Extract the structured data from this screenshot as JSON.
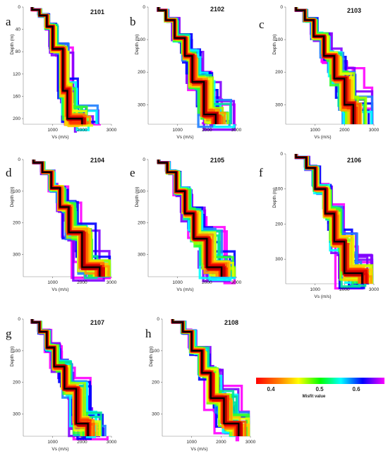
{
  "colorbar": {
    "title": "Misfit value",
    "ticks": [
      "0.4",
      "0.5",
      "0.6"
    ],
    "stops": [
      "#ff0000",
      "#ff7f00",
      "#ffff00",
      "#00ff00",
      "#00ffff",
      "#0000ff",
      "#ff00ff"
    ]
  },
  "chart_data": [
    {
      "type": "line",
      "panel": "a",
      "title": "2101",
      "xlabel": "Vs (m/s)",
      "ylabel": "Depth (m)",
      "xlim": [
        0,
        3000
      ],
      "ylim": [
        0,
        210
      ],
      "y_inverted": true,
      "xticks": [
        "1000",
        "2000",
        "3000"
      ],
      "yticks": [
        {
          "v": 0,
          "label": "0"
        },
        {
          "v": 40,
          "label": "40"
        },
        {
          "v": 80,
          "label": "80"
        },
        {
          "v": 120,
          "label": "120"
        },
        {
          "v": 160,
          "label": "160"
        },
        {
          "v": 200,
          "label": "200"
        }
      ],
      "best_model": {
        "vs": [
          300,
          550,
          800,
          1000,
          1350,
          1500,
          2000
        ],
        "depth_bottom": [
          5,
          15,
          35,
          75,
          150,
          200,
          210
        ]
      }
    },
    {
      "type": "line",
      "panel": "b",
      "title": "2102",
      "xlabel": "Vs (m/s)",
      "ylabel": "Depth (m)",
      "xlim": [
        0,
        3000
      ],
      "ylim": [
        0,
        360
      ],
      "y_inverted": true,
      "xticks": [
        "1000",
        "2000",
        "3000"
      ],
      "yticks": [
        {
          "v": 0,
          "label": "0"
        },
        {
          "v": 100,
          "label": "100"
        },
        {
          "v": 200,
          "label": "200"
        },
        {
          "v": 300,
          "label": "300"
        }
      ],
      "best_model": {
        "vs": [
          350,
          600,
          900,
          1250,
          1500,
          1900,
          2300
        ],
        "depth_bottom": [
          10,
          40,
          95,
          150,
          230,
          330,
          360
        ]
      }
    },
    {
      "type": "line",
      "panel": "c",
      "title": "2103",
      "xlabel": "Vs (m/s)",
      "ylabel": "Depth (m)",
      "xlim": [
        0,
        3000
      ],
      "ylim": [
        0,
        360
      ],
      "y_inverted": true,
      "xticks": [
        "1000",
        "2000",
        "3000"
      ],
      "yticks": [
        {
          "v": 0,
          "label": "0"
        },
        {
          "v": 100,
          "label": "100"
        },
        {
          "v": 200,
          "label": "200"
        },
        {
          "v": 300,
          "label": "300"
        }
      ],
      "best_model": {
        "vs": [
          350,
          650,
          950,
          1300,
          1650,
          2000,
          2300
        ],
        "depth_bottom": [
          10,
          40,
          90,
          150,
          220,
          300,
          360
        ]
      }
    },
    {
      "type": "line",
      "panel": "d",
      "title": "2104",
      "xlabel": "Vs (m/s)",
      "ylabel": "Depth (m)",
      "xlim": [
        0,
        3000
      ],
      "ylim": [
        0,
        370
      ],
      "y_inverted": true,
      "xticks": [
        "1000",
        "2000",
        "3000"
      ],
      "yticks": [
        {
          "v": 0,
          "label": "0"
        },
        {
          "v": 100,
          "label": "100"
        },
        {
          "v": 200,
          "label": "200"
        },
        {
          "v": 300,
          "label": "300"
        }
      ],
      "best_model": {
        "vs": [
          350,
          650,
          950,
          1250,
          1550,
          2000,
          2600
        ],
        "depth_bottom": [
          10,
          40,
          90,
          150,
          230,
          340,
          370
        ]
      }
    },
    {
      "type": "line",
      "panel": "e",
      "title": "2105",
      "xlabel": "Vs (m/s)",
      "ylabel": "Depth (m)",
      "xlim": [
        0,
        3000
      ],
      "ylim": [
        0,
        370
      ],
      "y_inverted": true,
      "xticks": [
        "1000",
        "2000",
        "3000"
      ],
      "yticks": [
        {
          "v": 0,
          "label": "0"
        },
        {
          "v": 100,
          "label": "100"
        },
        {
          "v": 200,
          "label": "200"
        },
        {
          "v": 300,
          "label": "300"
        }
      ],
      "best_model": {
        "vs": [
          350,
          650,
          950,
          1250,
          1550,
          2000,
          2500
        ],
        "depth_bottom": [
          10,
          40,
          100,
          170,
          250,
          340,
          370
        ]
      }
    },
    {
      "type": "line",
      "panel": "f",
      "title": "2106",
      "xlabel": "Vs (m/s)",
      "ylabel": "Depth (m)",
      "xlim": [
        0,
        3000
      ],
      "ylim": [
        0,
        370
      ],
      "y_inverted": true,
      "xticks": [
        "1000",
        "2000",
        "3000"
      ],
      "yticks": [
        {
          "v": 0,
          "label": "0"
        },
        {
          "v": 100,
          "label": "100"
        },
        {
          "v": 200,
          "label": "200"
        },
        {
          "v": 300,
          "label": "300"
        }
      ],
      "best_model": {
        "vs": [
          350,
          700,
          1000,
          1350,
          1650,
          2000,
          2600
        ],
        "depth_bottom": [
          10,
          40,
          100,
          170,
          250,
          340,
          370
        ]
      }
    },
    {
      "type": "line",
      "panel": "g",
      "title": "2107",
      "xlabel": "Vs (m/s)",
      "ylabel": "Depth (m)",
      "xlim": [
        0,
        3000
      ],
      "ylim": [
        0,
        370
      ],
      "y_inverted": true,
      "xticks": [
        "1000",
        "2000",
        "3000"
      ],
      "yticks": [
        {
          "v": 0,
          "label": "0"
        },
        {
          "v": 100,
          "label": "100"
        },
        {
          "v": 200,
          "label": "200"
        },
        {
          "v": 300,
          "label": "300"
        }
      ],
      "best_model": {
        "vs": [
          300,
          550,
          800,
          1050,
          1400,
          1800,
          2200
        ],
        "depth_bottom": [
          10,
          40,
          90,
          150,
          220,
          330,
          370
        ]
      }
    },
    {
      "type": "line",
      "panel": "h",
      "title": "2108",
      "xlabel": "Vs (m/s)",
      "ylabel": "Depth (m)",
      "xlim": [
        0,
        3000
      ],
      "ylim": [
        0,
        370
      ],
      "y_inverted": true,
      "xticks": [
        "1000",
        "2000",
        "3000"
      ],
      "yticks": [
        {
          "v": 0,
          "label": "0"
        },
        {
          "v": 100,
          "label": "100"
        },
        {
          "v": 200,
          "label": "200"
        },
        {
          "v": 300,
          "label": "300"
        }
      ],
      "best_model": {
        "vs": [
          350,
          700,
          1000,
          1350,
          1650,
          2100,
          2600
        ],
        "depth_bottom": [
          10,
          40,
          100,
          170,
          250,
          330,
          370
        ]
      }
    }
  ]
}
